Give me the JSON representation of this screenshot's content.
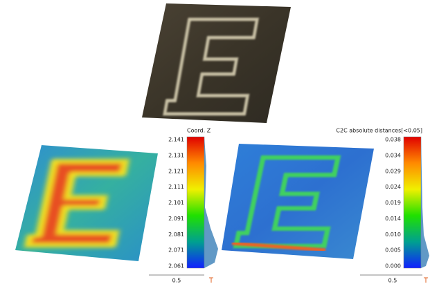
{
  "panels": [
    {
      "colorbar_title": "Coord. Z",
      "ticks": [
        "2.141",
        "2.131",
        "2.121",
        "2.111",
        "2.101",
        "2.091",
        "2.081",
        "2.071",
        "2.061"
      ],
      "scale_label": "0.5"
    },
    {
      "colorbar_title": "C2C absolute distances[<0.05]",
      "ticks": [
        "0.038",
        "0.034",
        "0.029",
        "0.024",
        "0.019",
        "0.014",
        "0.010",
        "0.005",
        "0.000"
      ],
      "scale_label": "0.5"
    }
  ]
}
